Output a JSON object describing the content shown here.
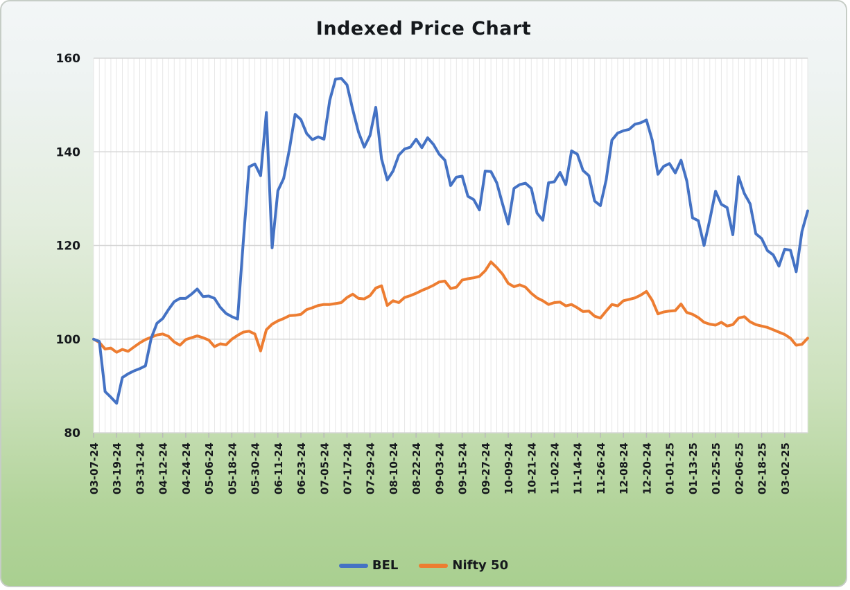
{
  "title": "Indexed Price Chart",
  "legend": {
    "items": [
      {
        "label": "BEL",
        "color": "#4472c4"
      },
      {
        "label": "Nifty 50",
        "color": "#ed7d31"
      }
    ],
    "position": "bottom"
  },
  "chart_data": {
    "type": "line",
    "title": "Indexed Price Chart",
    "xlabel": "",
    "ylabel": "",
    "ylim": [
      80,
      160
    ],
    "yticks": [
      80,
      100,
      120,
      140,
      160
    ],
    "grid": {
      "vertical": "one-per-point",
      "horizontal": "at-yticks"
    },
    "legend_position": "bottom",
    "points_per_label": 4,
    "x_tick_labels": [
      "03-07-24",
      "03-19-24",
      "03-31-24",
      "04-12-24",
      "04-24-24",
      "05-06-24",
      "05-18-24",
      "05-30-24",
      "06-11-24",
      "06-23-24",
      "07-05-24",
      "07-17-24",
      "07-29-24",
      "08-10-24",
      "08-22-24",
      "09-03-24",
      "09-15-24",
      "09-27-24",
      "10-09-24",
      "10-21-24",
      "11-02-24",
      "11-14-24",
      "11-26-24",
      "12-08-24",
      "12-20-24",
      "01-01-25",
      "01-13-25",
      "01-25-25",
      "02-06-25",
      "02-18-25",
      "03-02-25"
    ],
    "series": [
      {
        "name": "BEL",
        "color": "#4472c4",
        "values": [
          100,
          99.5,
          88.8,
          87.6,
          86.3,
          91.8,
          92.6,
          93.2,
          93.7,
          94.3,
          100.2,
          103.4,
          104.4,
          106.3,
          108.0,
          108.7,
          108.7,
          109.6,
          110.7,
          109.1,
          109.2,
          108.7,
          106.8,
          105.5,
          104.8,
          104.3,
          121.0,
          136.8,
          137.4,
          134.9,
          148.4,
          119.5,
          131.7,
          134.3,
          140.5,
          148.0,
          146.9,
          143.9,
          142.6,
          143.2,
          142.7,
          151.0,
          155.5,
          155.7,
          154.3,
          149.0,
          144.2,
          141.0,
          143.5,
          149.5,
          138.5,
          134.0,
          135.9,
          139.3,
          140.6,
          141.0,
          142.7,
          140.9,
          143.0,
          141.6,
          139.5,
          138.2,
          132.8,
          134.6,
          134.8,
          130.5,
          129.8,
          127.6,
          135.9,
          135.8,
          133.4,
          128.9,
          124.6,
          132.2,
          133.0,
          133.3,
          132.2,
          126.9,
          125.4,
          133.4,
          133.6,
          135.6,
          133.0,
          140.2,
          139.5,
          136.0,
          134.9,
          129.5,
          128.5,
          134.0,
          142.5,
          144.0,
          144.5,
          144.8,
          145.9,
          146.2,
          146.8,
          142.5,
          135.2,
          136.9,
          137.5,
          135.5,
          138.2,
          133.8,
          125.9,
          125.3,
          120.0,
          125.5,
          131.6,
          128.8,
          128.1,
          122.3,
          134.7,
          131.1,
          128.9,
          122.5,
          121.5,
          118.9,
          118.0,
          115.6,
          119.2,
          119.0,
          114.4,
          123.0,
          127.4
        ]
      },
      {
        "name": "Nifty 50",
        "color": "#ed7d31",
        "values": [
          100,
          99.3,
          97.9,
          98.1,
          97.2,
          97.8,
          97.4,
          98.3,
          99.2,
          99.9,
          100.4,
          100.9,
          101.1,
          100.6,
          99.4,
          98.7,
          99.9,
          100.3,
          100.7,
          100.3,
          99.8,
          98.4,
          99.0,
          98.8,
          100.0,
          100.8,
          101.5,
          101.7,
          101.1,
          97.5,
          102.0,
          103.2,
          103.9,
          104.4,
          105.0,
          105.1,
          105.3,
          106.3,
          106.7,
          107.2,
          107.4,
          107.4,
          107.6,
          107.8,
          108.9,
          109.6,
          108.7,
          108.6,
          109.3,
          110.9,
          111.4,
          107.2,
          108.2,
          107.8,
          108.9,
          109.3,
          109.8,
          110.4,
          110.9,
          111.5,
          112.2,
          112.4,
          110.8,
          111.1,
          112.6,
          112.9,
          113.1,
          113.4,
          114.6,
          116.5,
          115.3,
          113.9,
          111.9,
          111.2,
          111.6,
          111.1,
          109.8,
          108.8,
          108.2,
          107.4,
          107.8,
          107.9,
          107.1,
          107.4,
          106.7,
          105.9,
          106.0,
          104.9,
          104.5,
          106.0,
          107.4,
          107.1,
          108.2,
          108.5,
          108.8,
          109.4,
          110.2,
          108.3,
          105.4,
          105.8,
          106.0,
          106.1,
          107.5,
          105.7,
          105.3,
          104.6,
          103.6,
          103.2,
          103.0,
          103.6,
          102.8,
          103.1,
          104.5,
          104.8,
          103.7,
          103.1,
          102.8,
          102.5,
          102.0,
          101.5,
          101.0,
          100.2,
          98.7,
          98.9,
          100.2
        ]
      }
    ]
  },
  "style": {
    "plot_background": "#ffffff",
    "vertical_gridline_color": "#e7e7e7",
    "horizontal_gridline_color": "#d6d6d6",
    "tick_color": "#b9b9b9",
    "text_color": "#15181c",
    "card_gradient_top": "#f3f6f7",
    "card_gradient_bottom": "#a9cf90"
  }
}
